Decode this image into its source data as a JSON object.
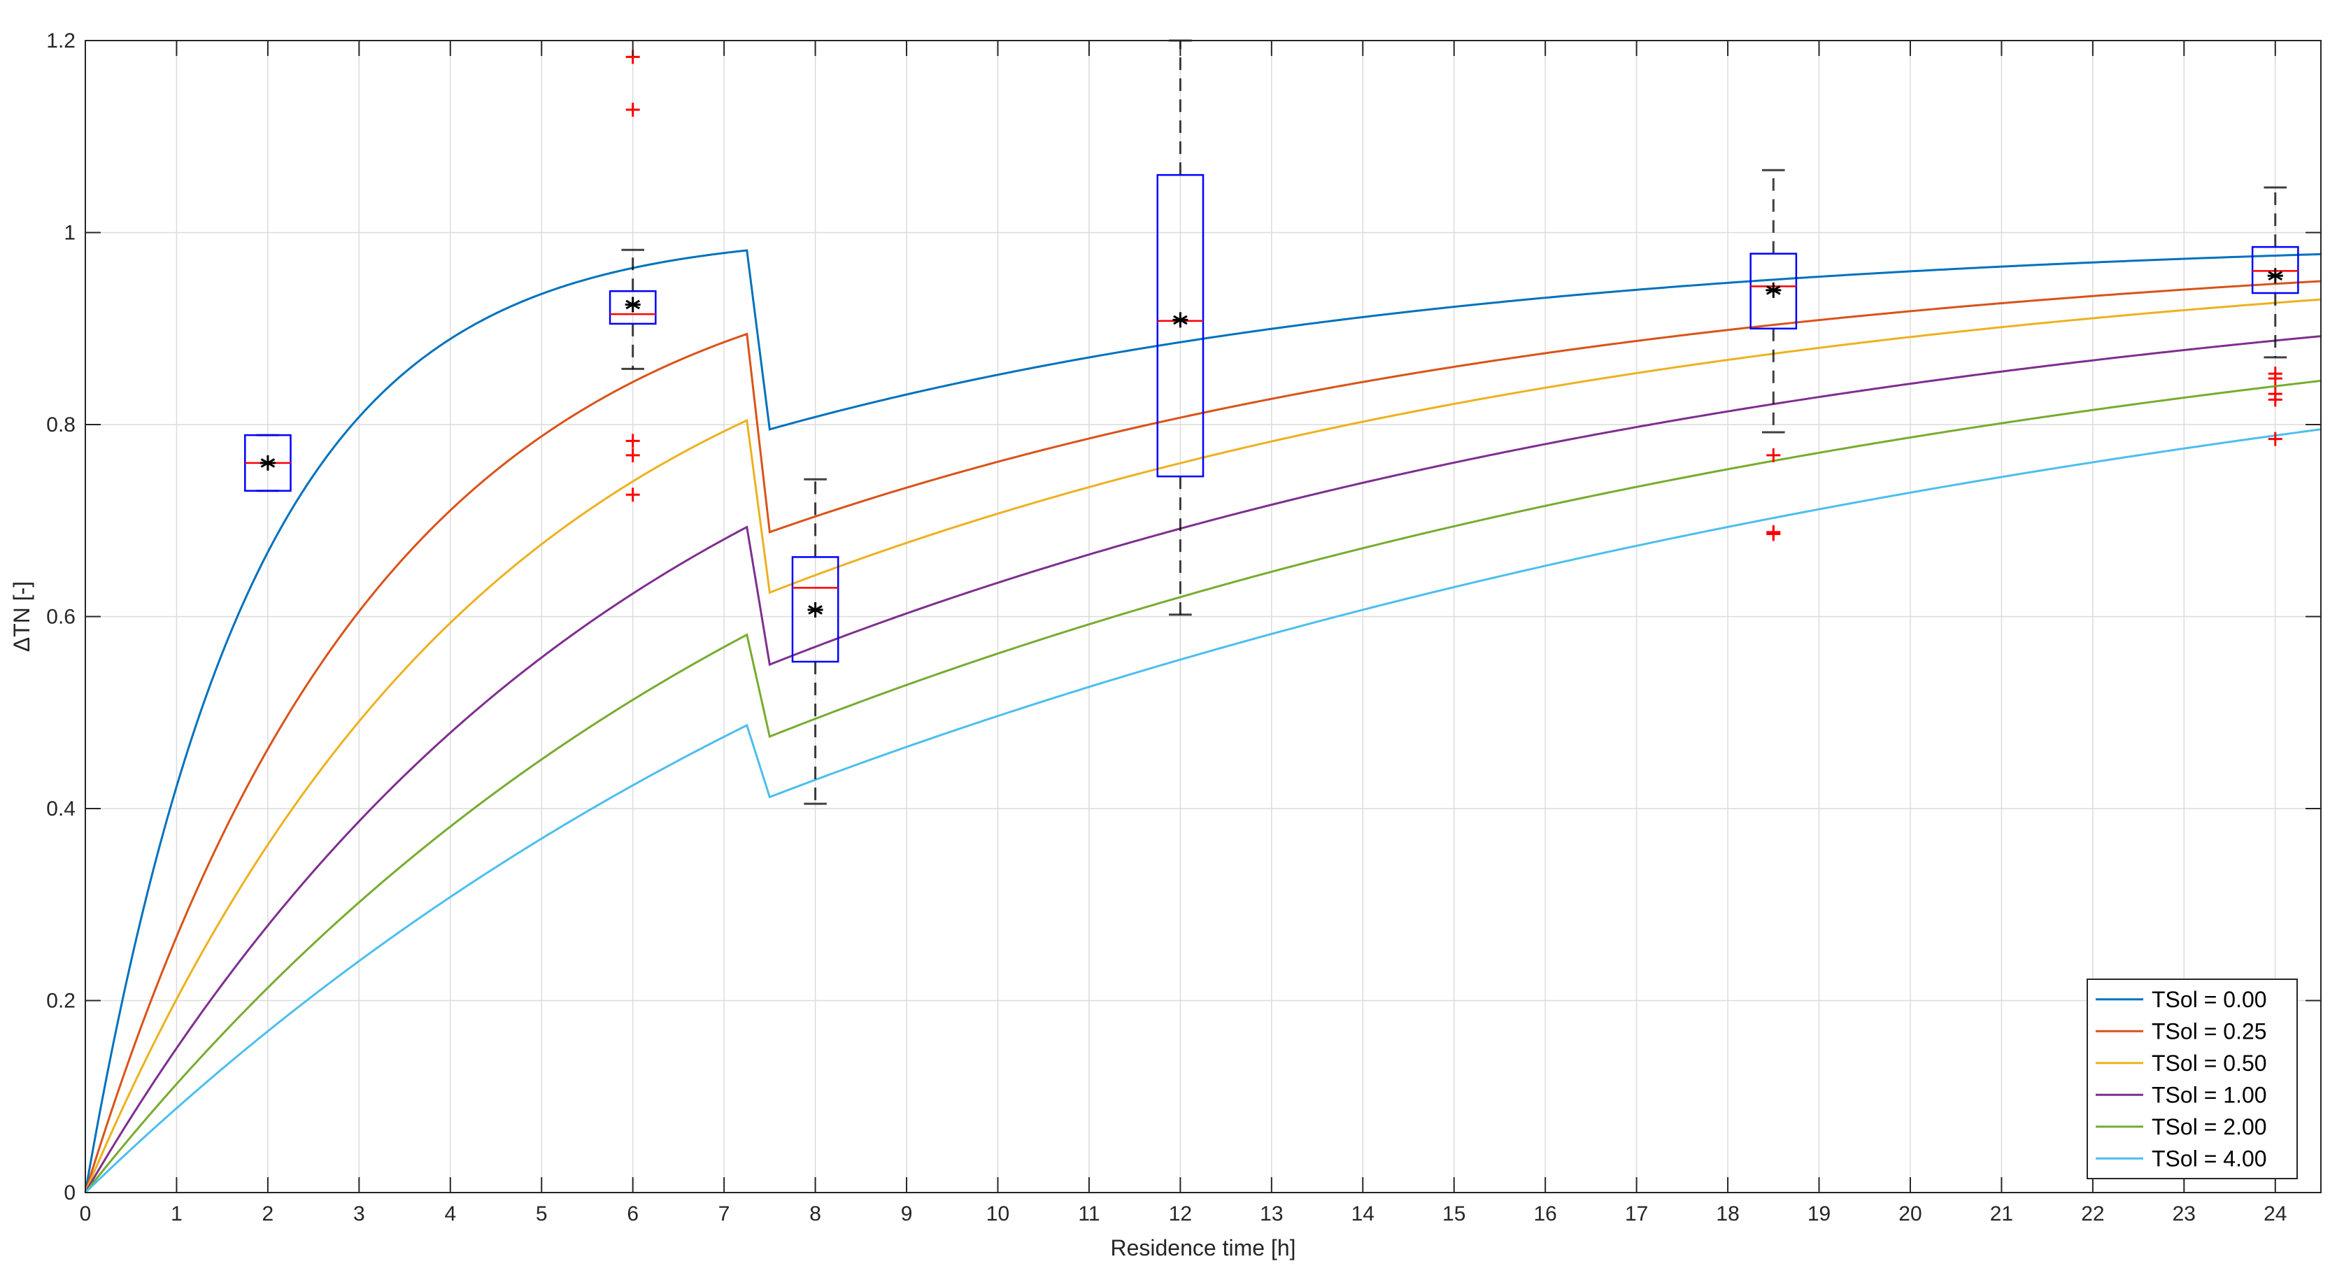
{
  "chart_data": {
    "type": "line",
    "xlabel": "Residence time [h]",
    "ylabel": "ΔTN [-]",
    "xlim": [
      0,
      24.5
    ],
    "ylim": [
      0,
      1.2
    ],
    "xticks": [
      "0",
      "1",
      "2",
      "3",
      "4",
      "5",
      "6",
      "7",
      "8",
      "9",
      "10",
      "11",
      "12",
      "13",
      "14",
      "15",
      "16",
      "17",
      "18",
      "19",
      "20",
      "21",
      "22",
      "23",
      "24"
    ],
    "yticks": [
      "0",
      "0.2",
      "0.4",
      "0.6",
      "0.8",
      "1",
      "1.2"
    ],
    "grid": true,
    "legend_position": "bottom-right",
    "series": [
      {
        "name": "TSol = 0.00",
        "color": "#0072BD",
        "k1": 0.55,
        "k2": 0.13,
        "t_switch": 7.25,
        "t_drop_end": 7.5,
        "drop_to": 0.795
      },
      {
        "name": "TSol = 0.25",
        "color": "#D95319",
        "k1": 0.31,
        "k2": 0.107,
        "t_switch": 7.25,
        "t_drop_end": 7.5,
        "drop_to": 0.688
      },
      {
        "name": "TSol = 0.50",
        "color": "#EDB120",
        "k1": 0.225,
        "k2": 0.099,
        "t_switch": 7.25,
        "t_drop_end": 7.5,
        "drop_to": 0.625
      },
      {
        "name": "TSol = 1.00",
        "color": "#7E2F8E",
        "k1": 0.163,
        "k2": 0.084,
        "t_switch": 7.25,
        "t_drop_end": 7.5,
        "drop_to": 0.55
      },
      {
        "name": "TSol = 2.00",
        "color": "#77AC30",
        "k1": 0.12,
        "k2": 0.072,
        "t_switch": 7.25,
        "t_drop_end": 7.5,
        "drop_to": 0.475
      },
      {
        "name": "TSol = 4.00",
        "color": "#4DBEEE",
        "k1": 0.092,
        "k2": 0.062,
        "t_switch": 7.25,
        "t_drop_end": 7.5,
        "drop_to": 0.412
      }
    ],
    "boxplots": [
      {
        "x": 2,
        "width": 0.5,
        "q1": 0.731,
        "median": 0.76,
        "q3": 0.789,
        "whisker_low": 0.731,
        "whisker_high": 0.789,
        "mean": 0.76,
        "outliers": []
      },
      {
        "x": 6,
        "width": 0.5,
        "q1": 0.905,
        "median": 0.915,
        "q3": 0.939,
        "whisker_low": 0.858,
        "whisker_high": 0.982,
        "mean": 0.925,
        "outliers": [
          1.183,
          1.128,
          0.783,
          0.768,
          0.727
        ]
      },
      {
        "x": 8,
        "width": 0.5,
        "q1": 0.553,
        "median": 0.63,
        "q3": 0.662,
        "whisker_low": 0.405,
        "whisker_high": 0.743,
        "mean": 0.607,
        "outliers": []
      },
      {
        "x": 12,
        "width": 0.5,
        "q1": 0.746,
        "median": 0.908,
        "q3": 1.06,
        "whisker_low": 0.602,
        "whisker_high": 1.2,
        "mean": 0.909,
        "outliers": []
      },
      {
        "x": 18.5,
        "width": 0.5,
        "q1": 0.9,
        "median": 0.944,
        "q3": 0.978,
        "whisker_low": 0.792,
        "whisker_high": 1.065,
        "mean": 0.94,
        "outliers": [
          0.768,
          0.688,
          0.686
        ]
      },
      {
        "x": 24,
        "width": 0.5,
        "q1": 0.937,
        "median": 0.96,
        "q3": 0.985,
        "whisker_low": 0.87,
        "whisker_high": 1.047,
        "mean": 0.955,
        "outliers": [
          0.853,
          0.848,
          0.832,
          0.826,
          0.785
        ]
      }
    ],
    "box_color": "#0000FF",
    "median_color": "#FF0000",
    "whisker_color": "#000000",
    "outlier_color": "#FF0000",
    "mean_color": "#000000"
  }
}
